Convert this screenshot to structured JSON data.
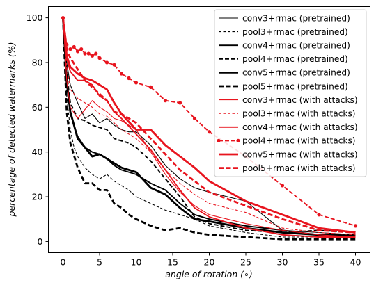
{
  "chart_data": {
    "type": "line",
    "xlabel": "angle of rotation (∘)",
    "ylabel": "percentage of detected watermarks (%)",
    "xlim": [
      -2,
      42
    ],
    "ylim": [
      -5,
      105
    ],
    "xticks": [
      0,
      5,
      10,
      15,
      20,
      25,
      30,
      35,
      40
    ],
    "yticks": [
      0,
      20,
      40,
      60,
      80,
      100
    ],
    "grid": false,
    "legend_position": "upper-right",
    "series": [
      {
        "name": "conv3+rmac (pretrained)",
        "color": "#000000",
        "width": "thin",
        "dash": "solid",
        "marker": false,
        "x": [
          0,
          0.5,
          1,
          2,
          3,
          4,
          5,
          6,
          7,
          8,
          9,
          10,
          12,
          14,
          16,
          18,
          20,
          25,
          30,
          35,
          40
        ],
        "y": [
          100,
          80,
          70,
          62,
          55,
          57,
          53,
          55,
          52,
          50,
          49,
          49,
          43,
          34,
          28,
          24,
          22,
          18,
          5,
          4,
          3
        ]
      },
      {
        "name": "pool3+rmac (pretrained)",
        "color": "#000000",
        "width": "thin",
        "dash": "dashed",
        "marker": false,
        "x": [
          0,
          0.5,
          1,
          1.5,
          2,
          3,
          4,
          5,
          6,
          7,
          8,
          9,
          10,
          12,
          14,
          16,
          18,
          20,
          25,
          30,
          35,
          40
        ],
        "y": [
          100,
          65,
          50,
          42,
          38,
          33,
          30,
          28,
          30,
          27,
          25,
          23,
          20,
          17,
          14,
          12,
          10,
          7,
          4,
          2,
          2,
          2
        ]
      },
      {
        "name": "conv4+rmac (pretrained)",
        "color": "#000000",
        "width": "medium",
        "dash": "solid",
        "marker": false,
        "x": [
          0,
          0.5,
          1,
          2,
          3,
          4,
          5,
          6,
          7,
          8,
          10,
          12,
          14,
          16,
          18,
          20,
          25,
          30,
          35,
          40
        ],
        "y": [
          100,
          70,
          57,
          47,
          42,
          40,
          39,
          37,
          34,
          32,
          30,
          26,
          23,
          17,
          12,
          10,
          7,
          5,
          3,
          3
        ]
      },
      {
        "name": "pool4+rmac (pretrained)",
        "color": "#000000",
        "width": "medium",
        "dash": "dashed",
        "marker": false,
        "x": [
          0,
          0.5,
          1,
          2,
          3,
          4,
          5,
          6,
          7,
          8,
          9,
          10,
          12,
          14,
          16,
          18,
          20,
          25,
          30,
          35,
          40
        ],
        "y": [
          100,
          75,
          62,
          55,
          54,
          52,
          51,
          50,
          46,
          45,
          44,
          42,
          36,
          28,
          20,
          11,
          8,
          5,
          4,
          5,
          4
        ]
      },
      {
        "name": "conv5+rmac (pretrained)",
        "color": "#000000",
        "width": "thick",
        "dash": "solid",
        "marker": false,
        "x": [
          0,
          0.5,
          1,
          2,
          3,
          4,
          5,
          6,
          7,
          8,
          10,
          12,
          14,
          16,
          18,
          20,
          25,
          30,
          35,
          40
        ],
        "y": [
          100,
          72,
          58,
          46,
          42,
          38,
          39,
          37,
          35,
          33,
          31,
          24,
          21,
          15,
          10,
          9,
          6,
          4,
          3,
          3
        ]
      },
      {
        "name": "pool5+rmac (pretrained)",
        "color": "#000000",
        "width": "thick",
        "dash": "dashed",
        "marker": false,
        "x": [
          0,
          0.5,
          1,
          2,
          3,
          4,
          5,
          6,
          7,
          8,
          9,
          10,
          12,
          14,
          16,
          18,
          20,
          25,
          30,
          35,
          40
        ],
        "y": [
          100,
          58,
          44,
          33,
          26,
          26,
          23,
          23,
          17,
          15,
          12,
          10,
          7,
          5,
          6,
          4,
          3,
          2,
          1,
          1,
          1
        ]
      },
      {
        "name": "conv3+rmac (with attacks)",
        "color": "#e8141e",
        "width": "thin",
        "dash": "solid",
        "marker": false,
        "x": [
          0,
          0.5,
          1,
          2,
          3,
          4,
          5,
          6,
          7,
          8,
          10,
          12,
          14,
          16,
          18,
          20,
          25,
          30,
          35,
          40
        ],
        "y": [
          100,
          72,
          60,
          55,
          59,
          63,
          60,
          58,
          55,
          54,
          50,
          40,
          30,
          22,
          16,
          12,
          8,
          5,
          3,
          2
        ]
      },
      {
        "name": "pool3+rmac (with attacks)",
        "color": "#e8141e",
        "width": "thin",
        "dash": "dashed",
        "marker": false,
        "x": [
          0,
          0.5,
          1,
          2,
          3,
          4,
          5,
          6,
          7,
          8,
          10,
          12,
          14,
          16,
          18,
          20,
          25,
          30,
          35,
          40
        ],
        "y": [
          100,
          78,
          68,
          64,
          62,
          60,
          57,
          56,
          53,
          50,
          46,
          40,
          32,
          26,
          21,
          17,
          13,
          6,
          4,
          3
        ]
      },
      {
        "name": "conv4+rmac (with attacks)",
        "color": "#e8141e",
        "width": "medium",
        "dash": "solid",
        "marker": false,
        "x": [
          0,
          0.5,
          1,
          2,
          3,
          4,
          5,
          6,
          7,
          8,
          10,
          12,
          14,
          16,
          18,
          20,
          25,
          30,
          35,
          40
        ],
        "y": [
          100,
          82,
          76,
          72,
          72,
          70,
          65,
          63,
          58,
          55,
          48,
          41,
          32,
          23,
          15,
          11,
          6,
          3,
          2,
          2
        ]
      },
      {
        "name": "pool4+rmac (with attacks)",
        "color": "#e8141e",
        "width": "medium",
        "dash": "dashed",
        "marker": true,
        "x": [
          0,
          0.5,
          1,
          1.5,
          2,
          2.5,
          3,
          3.5,
          4,
          4.5,
          5,
          6,
          7,
          8,
          9,
          10,
          12,
          14,
          16,
          18,
          20,
          25,
          30,
          35,
          40
        ],
        "y": [
          100,
          88,
          86,
          87,
          85,
          86,
          84,
          84,
          83,
          84,
          82,
          80,
          79,
          75,
          73,
          71,
          69,
          63,
          62,
          55,
          49,
          38,
          25,
          12,
          7
        ]
      },
      {
        "name": "conv5+rmac (with attacks)",
        "color": "#e8141e",
        "width": "thick",
        "dash": "solid",
        "marker": false,
        "x": [
          0,
          0.5,
          1,
          2,
          3,
          4,
          5,
          6,
          7,
          8,
          10,
          12,
          14,
          16,
          18,
          20,
          25,
          30,
          35,
          40
        ],
        "y": [
          100,
          83,
          78,
          75,
          73,
          72,
          70,
          68,
          62,
          57,
          50,
          50,
          43,
          38,
          33,
          27,
          18,
          12,
          6,
          4
        ]
      },
      {
        "name": "pool5+rmac (with attacks)",
        "color": "#e8141e",
        "width": "thick",
        "dash": "dashed",
        "marker": false,
        "x": [
          0,
          0.5,
          1,
          2,
          3,
          4,
          5,
          6,
          7,
          8,
          10,
          12,
          14,
          16,
          18,
          20,
          25,
          30,
          35,
          40
        ],
        "y": [
          100,
          86,
          82,
          77,
          72,
          69,
          66,
          63,
          58,
          57,
          53,
          46,
          39,
          32,
          27,
          22,
          16,
          10,
          5,
          4
        ]
      }
    ]
  }
}
